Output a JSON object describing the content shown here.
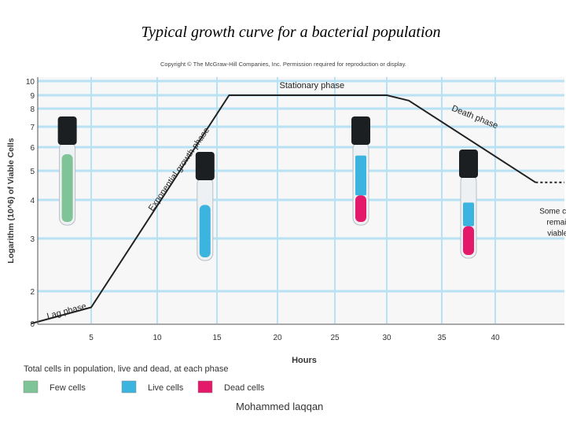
{
  "title": "Typical growth curve for a bacterial population",
  "copyright": "Copyright © The McGraw-Hill Companies, Inc. Permission required for reproduction or display.",
  "footer": "Mohammed laqqan",
  "legend": {
    "heading": "Total cells in population, live and dead, at each phase",
    "items": [
      {
        "label": "Few cells",
        "color": "#7fc497"
      },
      {
        "label": "Live cells",
        "color": "#3cb4e0"
      },
      {
        "label": "Dead cells",
        "color": "#e5196a"
      }
    ]
  },
  "chart_data": {
    "type": "line",
    "xlabel": "Hours",
    "ylabel": "Logarithm (10^6) of Viable Cells",
    "xticks": [
      5,
      10,
      15,
      20,
      25,
      30,
      35,
      40
    ],
    "yticks": [
      0,
      2,
      3,
      4,
      5,
      6,
      7,
      8,
      9,
      10
    ],
    "xlim": [
      0,
      46
    ],
    "ylim": [
      0,
      10
    ],
    "y_scale": "log",
    "grid": true,
    "series": [
      {
        "x": [
          0,
          5,
          16,
          30,
          32,
          43.5
        ],
        "y": [
          0,
          1.0,
          9,
          9,
          8.6,
          4.6
        ]
      }
    ],
    "tail": {
      "x": [
        43.5,
        46
      ],
      "y": [
        4.6,
        4.6
      ],
      "style": "dashed"
    },
    "annotations": [
      {
        "text": "Lag phase",
        "x": 3,
        "y": 0.6
      },
      {
        "text": "Exponential growth phase",
        "x": 12,
        "y": 5
      },
      {
        "text": "Stationary phase",
        "x": 23,
        "y": 9.5
      },
      {
        "text": "Death phase",
        "x": 38,
        "y": 7.4
      },
      {
        "text": "Some cells remain viable.",
        "x": 45.5,
        "y": 3.4
      }
    ],
    "tubes": [
      {
        "x": 3,
        "fill_top": 5.1,
        "segments": [
          {
            "color": "#7fc497",
            "to": 0
          }
        ]
      },
      {
        "x": 14,
        "fill_top": 4.0,
        "segments": [
          {
            "color": "#3cb4e0",
            "to": 0
          }
        ]
      },
      {
        "x": 27.5,
        "fill_top": 5.0,
        "segments": [
          {
            "color": "#3cb4e0",
            "to": 0.4
          },
          {
            "color": "#e5196a",
            "to": 0
          }
        ]
      },
      {
        "x": 37.5,
        "fill_top": 4.0,
        "segments": [
          {
            "color": "#3cb4e0",
            "to": 0.55
          },
          {
            "color": "#e5196a",
            "to": 0
          }
        ]
      }
    ]
  }
}
